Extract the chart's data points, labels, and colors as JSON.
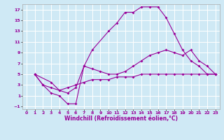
{
  "xlabel": "Windchill (Refroidissement éolien,°C)",
  "bg_color": "#cfe9f5",
  "grid_color": "#ffffff",
  "line_color": "#990099",
  "xlim": [
    -0.5,
    23.5
  ],
  "ylim": [
    -1.5,
    18
  ],
  "xticks": [
    0,
    1,
    2,
    3,
    4,
    5,
    6,
    7,
    8,
    9,
    10,
    11,
    12,
    13,
    14,
    15,
    16,
    17,
    18,
    19,
    20,
    21,
    22,
    23
  ],
  "yticks": [
    -1,
    1,
    3,
    5,
    7,
    9,
    11,
    13,
    15,
    17
  ],
  "line1_x": [
    1,
    2,
    3,
    4,
    5,
    6,
    7,
    8,
    10,
    11,
    12,
    13,
    14,
    15,
    16,
    17,
    18,
    19,
    20,
    21,
    22,
    23
  ],
  "line1_y": [
    5,
    3,
    1.5,
    1,
    -0.5,
    -0.5,
    6.5,
    9.5,
    13,
    14.5,
    16.5,
    16.5,
    17.5,
    17.5,
    17.5,
    15.5,
    12.5,
    9.5,
    7.5,
    6.5,
    5,
    5
  ],
  "line2_x": [
    1,
    3,
    4,
    5,
    6,
    7,
    8,
    9,
    10,
    11,
    12,
    13,
    14,
    15,
    16,
    17,
    18,
    19,
    20,
    21,
    22,
    23
  ],
  "line2_y": [
    5,
    3.5,
    2,
    1.5,
    2.5,
    6.5,
    6,
    5.5,
    5,
    5,
    5.5,
    6.5,
    7.5,
    8.5,
    9,
    9.5,
    9,
    8.5,
    9.5,
    7.5,
    6.5,
    5
  ],
  "line3_x": [
    1,
    2,
    3,
    4,
    5,
    6,
    7,
    8,
    9,
    10,
    11,
    12,
    13,
    14,
    15,
    16,
    17,
    18,
    19,
    20,
    21,
    22,
    23
  ],
  "line3_y": [
    5,
    3,
    2.5,
    2,
    2.5,
    3,
    3.5,
    4,
    4,
    4,
    4.5,
    4.5,
    4.5,
    5,
    5,
    5,
    5,
    5,
    5,
    5,
    5,
    5,
    5
  ],
  "tick_fontsize": 4.5,
  "xlabel_fontsize": 5.5,
  "linewidth": 0.8,
  "markersize": 2.0
}
